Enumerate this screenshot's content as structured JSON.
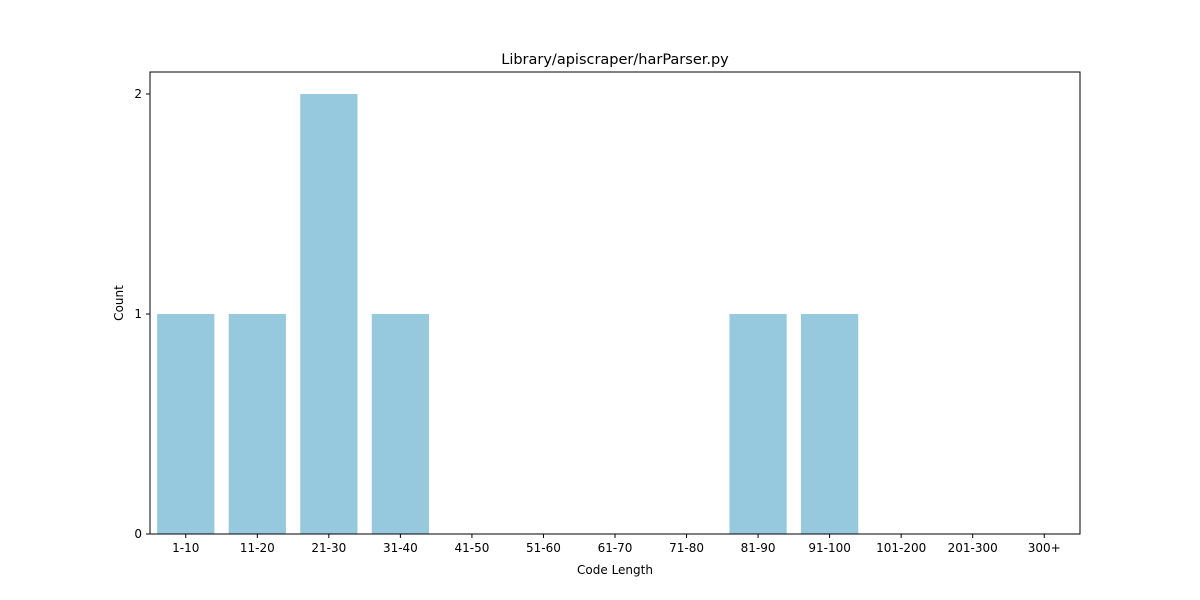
{
  "chart_data": {
    "type": "bar",
    "title": "Library/apiscraper/harParser.py",
    "xlabel": "Code Length",
    "ylabel": "Count",
    "categories": [
      "1-10",
      "11-20",
      "21-30",
      "31-40",
      "41-50",
      "51-60",
      "61-70",
      "71-80",
      "81-90",
      "91-100",
      "101-200",
      "201-300",
      "300+"
    ],
    "values": [
      1,
      1,
      2,
      1,
      0,
      0,
      0,
      0,
      1,
      1,
      0,
      0,
      0
    ],
    "ylim": [
      0,
      2.1
    ],
    "yticks": [
      0,
      1,
      2
    ],
    "grid": false,
    "legend": "none",
    "bar_color": "#96c9de",
    "axis_color": "#000000"
  }
}
